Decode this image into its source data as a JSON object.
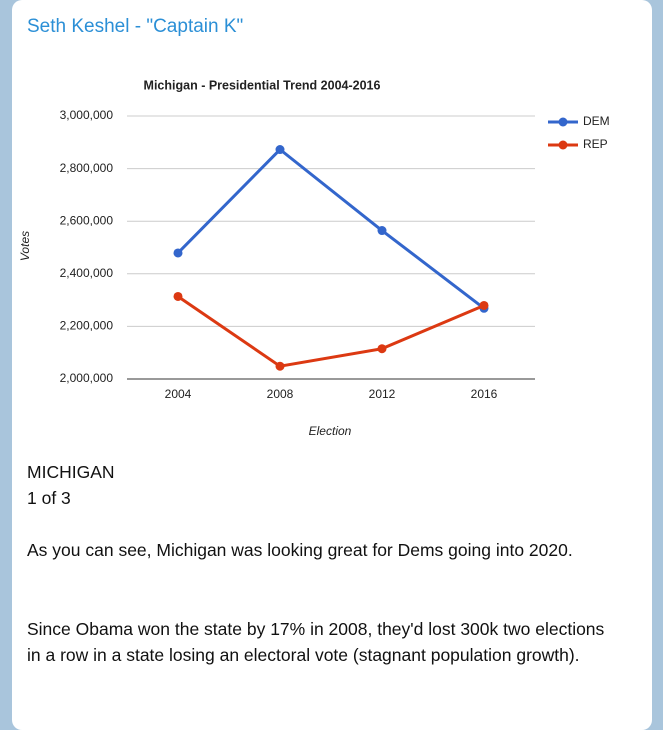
{
  "header": {
    "title": "Seth Keshel - \"Captain K\""
  },
  "chart_data": {
    "type": "line",
    "title": "Michigan - Presidential Trend 2004-2016",
    "x_label": "Election",
    "y_label": "Votes",
    "categories": [
      "2004",
      "2008",
      "2012",
      "2016"
    ],
    "series": [
      {
        "name": "DEM",
        "color": "#3366cc",
        "values": [
          2479183,
          2872579,
          2564569,
          2268839
        ]
      },
      {
        "name": "REP",
        "color": "#dc3912",
        "values": [
          2313746,
          2048639,
          2115256,
          2279543
        ]
      }
    ],
    "ylim": [
      2000000,
      3000000
    ],
    "yticks": [
      {
        "value": 2000000,
        "label": "2,000,000"
      },
      {
        "value": 2200000,
        "label": "2,200,000"
      },
      {
        "value": 2400000,
        "label": "2,400,000"
      },
      {
        "value": 2600000,
        "label": "2,600,000"
      },
      {
        "value": 2800000,
        "label": "2,800,000"
      },
      {
        "value": 3000000,
        "label": "3,000,000"
      }
    ],
    "grid": true,
    "legend": "right"
  },
  "body": {
    "heading": [
      "MICHIGAN",
      "1 of 3"
    ],
    "paragraphs": [
      "As you can see, Michigan was looking great for Dems going into 2020.",
      "Since Obama won the state by 17% in 2008, they'd lost 300k two elections in a row in a state losing an electoral vote (stagnant population growth)."
    ]
  }
}
